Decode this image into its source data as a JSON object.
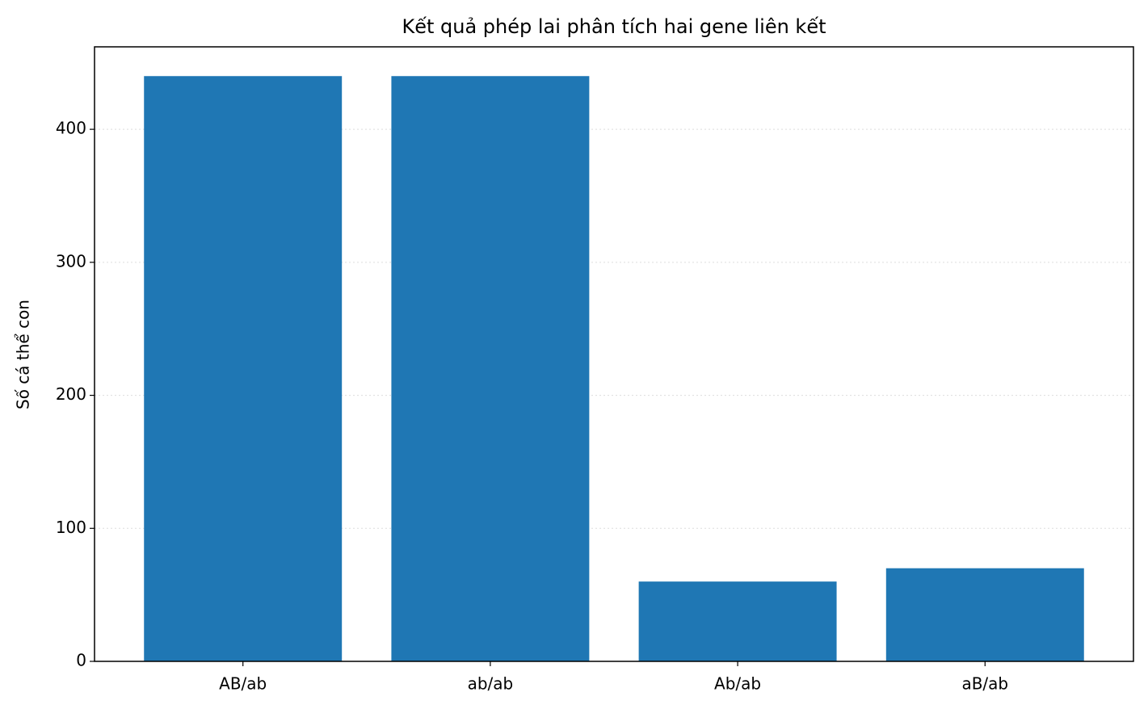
{
  "chart_data": {
    "type": "bar",
    "title": "Kết quả phép lai phân tích hai gene liên kết",
    "y_label": "Số cá thể con",
    "categories": [
      "AB/ab",
      "ab/ab",
      "Ab/ab",
      "aB/ab"
    ],
    "values": [
      440,
      440,
      60,
      70
    ],
    "color": "#1f77b4",
    "ylim": [
      0,
      462
    ],
    "yticks": [
      0,
      100,
      200,
      300,
      400
    ],
    "grid": true
  }
}
